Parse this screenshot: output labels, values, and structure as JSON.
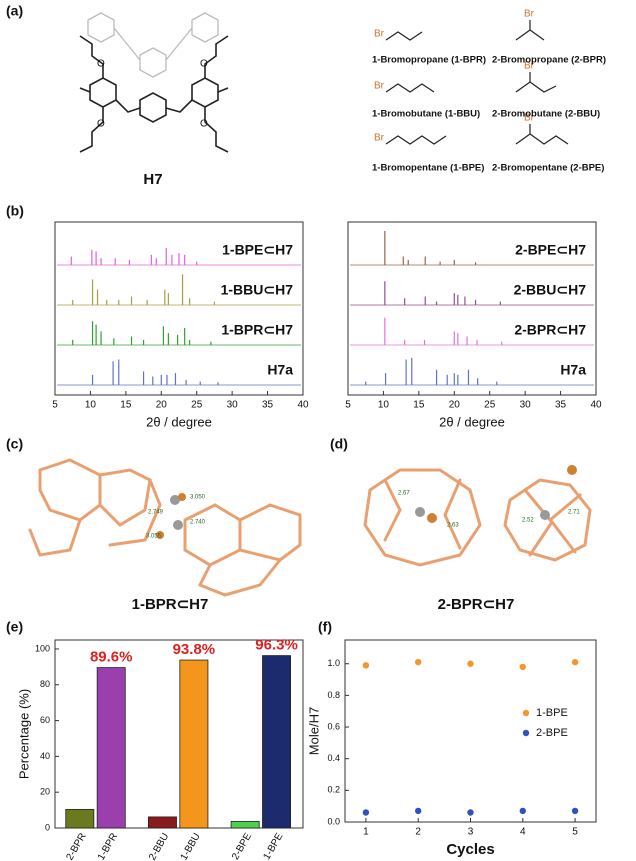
{
  "figure": {
    "panel_labels": [
      "(a)",
      "(b)",
      "(c)",
      "(d)",
      "(e)",
      "(f)"
    ],
    "a": {
      "host": "H7",
      "bromo": "Br",
      "compounds": [
        "1-Bromopropane (1-BPR)",
        "2-Bromopropane (2-BPR)",
        "1-Bromobutane (1-BBU)",
        "2-Bromobutane (2-BBU)",
        "1-Bromopentane (1-BPE)",
        "2-Bromopentane (2-BPE)"
      ]
    },
    "c": {
      "caption": "1-BPR⊂H7",
      "distances": [
        "3.050",
        "2.749",
        "2.740",
        "3.055"
      ]
    },
    "d": {
      "caption": "2-BPR⊂H7",
      "distances": [
        "2.67",
        "2.63",
        "2.52",
        "2.71"
      ]
    }
  },
  "chart_data": [
    {
      "type": "spectrum",
      "xlabel": "2θ / degree",
      "xlim": [
        5,
        40
      ],
      "xticks": [
        5,
        10,
        15,
        20,
        25,
        30,
        35,
        40
      ],
      "series": [
        {
          "name": "1-BPE⊂H7",
          "color": "#e060e0",
          "x": [
            7.3,
            10.2,
            10.8,
            11.5,
            13.5,
            15.5,
            18.6,
            19.3,
            20.7,
            21.5,
            22.5,
            23.3,
            25
          ],
          "values": [
            25,
            45,
            40,
            20,
            20,
            15,
            30,
            20,
            50,
            30,
            35,
            30,
            10
          ]
        },
        {
          "name": "1-BBU⊂H7",
          "color": "#a8a040",
          "x": [
            7.5,
            10.3,
            11,
            12.3,
            14,
            15.8,
            18,
            20.5,
            21,
            23,
            24,
            27.5
          ],
          "values": [
            15,
            75,
            45,
            15,
            15,
            25,
            15,
            45,
            35,
            90,
            20,
            10
          ]
        },
        {
          "name": "1-BPR⊂H7",
          "color": "#30a030",
          "x": [
            7.5,
            10.3,
            10.8,
            11.5,
            13.3,
            15.8,
            17.5,
            20.3,
            21,
            22.3,
            23.3,
            24,
            27
          ],
          "values": [
            15,
            70,
            60,
            40,
            20,
            25,
            15,
            55,
            35,
            30,
            50,
            15,
            10
          ]
        },
        {
          "name": "H7a",
          "color": "#6070d0",
          "x": [
            10.3,
            13.2,
            14,
            17.5,
            18.8,
            20,
            20.8,
            22,
            23.5,
            25.5,
            28
          ],
          "values": [
            30,
            70,
            75,
            40,
            25,
            30,
            30,
            35,
            15,
            10,
            8
          ]
        }
      ]
    },
    {
      "type": "spectrum",
      "xlabel": "2θ / degree",
      "xlim": [
        5,
        40
      ],
      "xticks": [
        5,
        10,
        15,
        20,
        25,
        30,
        35,
        40
      ],
      "series": [
        {
          "name": "2-BPE⊂H7",
          "color": "#a06050",
          "x": [
            10.2,
            12.8,
            13.5,
            15.9,
            18,
            20,
            23
          ],
          "values": [
            100,
            25,
            15,
            25,
            10,
            15,
            8
          ]
        },
        {
          "name": "2-BBU⊂H7",
          "color": "#905090",
          "x": [
            10.2,
            13,
            15.9,
            17.5,
            20,
            20.5,
            21.5,
            23,
            26.5
          ],
          "values": [
            70,
            20,
            25,
            10,
            35,
            30,
            25,
            15,
            10
          ]
        },
        {
          "name": "2-BPR⊂H7",
          "color": "#e070e0",
          "x": [
            10.2,
            13,
            15.8,
            20,
            20.5,
            21.8,
            23.2,
            26.7
          ],
          "values": [
            80,
            15,
            15,
            40,
            35,
            25,
            15,
            10
          ]
        },
        {
          "name": "H7a",
          "color": "#6070d0",
          "x": [
            7.5,
            10.3,
            13.2,
            14,
            17.5,
            19,
            20,
            20.5,
            22,
            23.3,
            26
          ],
          "values": [
            10,
            35,
            75,
            80,
            45,
            30,
            35,
            30,
            45,
            20,
            10
          ]
        }
      ]
    },
    {
      "type": "bar",
      "ylabel": "Percentage (%)",
      "categories": [
        "2-BPR",
        "1-BPR",
        "2-BBU",
        "1-BBU",
        "2-BPE",
        "1-BPE"
      ],
      "values": [
        10.4,
        89.6,
        6.2,
        93.8,
        3.7,
        96.3
      ],
      "value_labels": [
        null,
        "89.6%",
        null,
        "93.8%",
        null,
        "96.3%"
      ],
      "colors": [
        "#6b7a1f",
        "#9b3fae",
        "#8b1a1a",
        "#f5961c",
        "#4cd14c",
        "#1c2a6e"
      ],
      "ylim": [
        0,
        105
      ],
      "yticks": [
        0,
        20,
        40,
        60,
        80,
        100
      ]
    },
    {
      "type": "scatter",
      "xlabel": "Cycles",
      "ylabel": "Mole/H7",
      "x": [
        1,
        2,
        3,
        4,
        5
      ],
      "xlim": [
        0.6,
        5.4
      ],
      "xticks": [
        1,
        2,
        3,
        4,
        5
      ],
      "ylim": [
        0,
        1.15
      ],
      "yticks": [
        {
          "value": 0,
          "label": "0.0"
        },
        0.2,
        0.4,
        0.6,
        0.8,
        {
          "value": 1,
          "label": "1.0"
        }
      ],
      "series": [
        {
          "name": "1-BPE",
          "color": "#f5962a",
          "values": [
            0.99,
            1.01,
            1.0,
            0.98,
            1.01
          ]
        },
        {
          "name": "2-BPE",
          "color": "#3050c0",
          "values": [
            0.06,
            0.07,
            0.06,
            0.07,
            0.07
          ]
        }
      ]
    }
  ]
}
